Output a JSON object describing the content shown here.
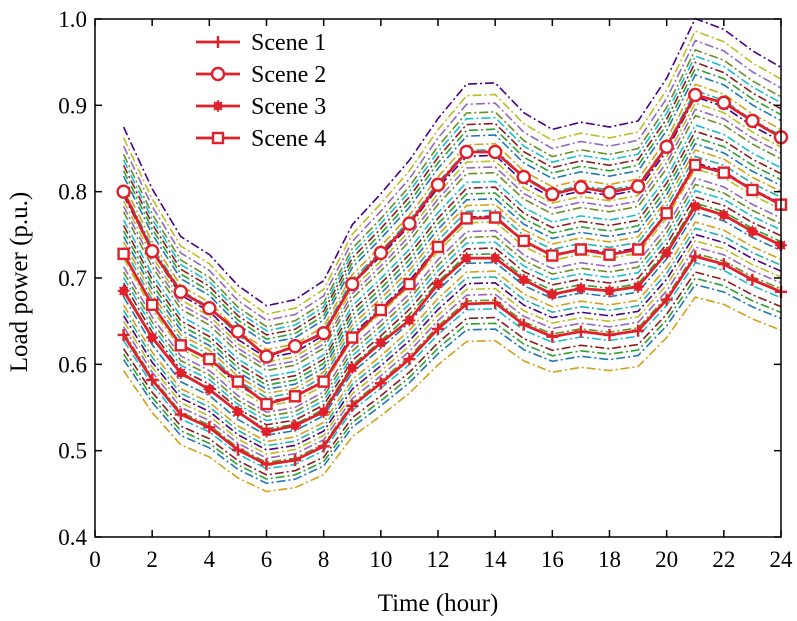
{
  "chart_data": {
    "type": "line",
    "xlabel": "Time (hour)",
    "ylabel": "Load power (p.u.)",
    "xlim": [
      0,
      24
    ],
    "ylim": [
      0.4,
      1.0
    ],
    "xticks": [
      0,
      2,
      4,
      6,
      8,
      10,
      12,
      14,
      16,
      18,
      20,
      22,
      24
    ],
    "yticks": [
      0.4,
      0.5,
      0.6,
      0.7,
      0.8,
      0.9,
      1.0
    ],
    "xtick_labels": [
      "0",
      "2",
      "4",
      "6",
      "8",
      "10",
      "12",
      "14",
      "16",
      "18",
      "20",
      "22",
      "24"
    ],
    "ytick_labels": [
      "0.4",
      "0.5",
      "0.6",
      "0.7",
      "0.8",
      "0.9",
      "1.0"
    ],
    "grid": false,
    "legend_position": "top-left",
    "x": [
      1,
      2,
      3,
      4,
      5,
      6,
      7,
      8,
      9,
      10,
      11,
      12,
      13,
      14,
      15,
      16,
      17,
      18,
      19,
      20,
      21,
      22,
      23,
      24
    ],
    "series": [
      {
        "name": "Scene 1",
        "marker": "plus",
        "color": "#e0202a",
        "values": [
          0.634,
          0.582,
          0.542,
          0.527,
          0.501,
          0.484,
          0.489,
          0.505,
          0.552,
          0.578,
          0.606,
          0.641,
          0.67,
          0.671,
          0.646,
          0.632,
          0.638,
          0.634,
          0.639,
          0.675,
          0.725,
          0.716,
          0.698,
          0.684
        ]
      },
      {
        "name": "Scene 2",
        "marker": "circle",
        "color": "#e0202a",
        "values": [
          0.8,
          0.731,
          0.684,
          0.665,
          0.638,
          0.609,
          0.621,
          0.636,
          0.693,
          0.729,
          0.763,
          0.808,
          0.846,
          0.846,
          0.817,
          0.797,
          0.805,
          0.799,
          0.806,
          0.852,
          0.912,
          0.903,
          0.882,
          0.863
        ]
      },
      {
        "name": "Scene 3",
        "marker": "star",
        "color": "#e0202a",
        "values": [
          0.685,
          0.631,
          0.59,
          0.571,
          0.545,
          0.522,
          0.529,
          0.545,
          0.596,
          0.625,
          0.651,
          0.693,
          0.723,
          0.723,
          0.698,
          0.681,
          0.688,
          0.685,
          0.69,
          0.729,
          0.783,
          0.773,
          0.754,
          0.738
        ]
      },
      {
        "name": "Scene 4",
        "marker": "square",
        "color": "#e0202a",
        "values": [
          0.728,
          0.669,
          0.622,
          0.606,
          0.58,
          0.554,
          0.563,
          0.58,
          0.631,
          0.663,
          0.693,
          0.736,
          0.769,
          0.77,
          0.743,
          0.726,
          0.733,
          0.727,
          0.733,
          0.775,
          0.831,
          0.822,
          0.802,
          0.785
        ]
      }
    ],
    "background_series": {
      "style": "dash-dot",
      "colors": [
        "#d4a017",
        "#1f77b4",
        "#2ca02c",
        "#8c1c1c",
        "#17becf",
        "#6b8e23",
        "#9467bd",
        "#bcbd22",
        "#4b0082",
        "#20b2aa"
      ],
      "scale_factors": [
        0.935,
        0.955,
        0.965,
        0.975,
        0.99,
        1.005,
        1.015,
        1.025,
        1.035,
        1.045,
        1.055,
        1.07,
        1.085,
        1.095,
        1.105,
        1.115,
        1.125,
        1.14,
        1.15,
        1.16,
        1.17,
        1.18,
        1.19,
        1.2,
        1.21,
        1.225,
        1.235,
        1.245,
        1.255,
        1.265,
        1.275,
        1.29,
        1.3,
        1.31,
        1.32,
        1.33,
        1.345,
        1.36,
        1.38
      ]
    }
  }
}
